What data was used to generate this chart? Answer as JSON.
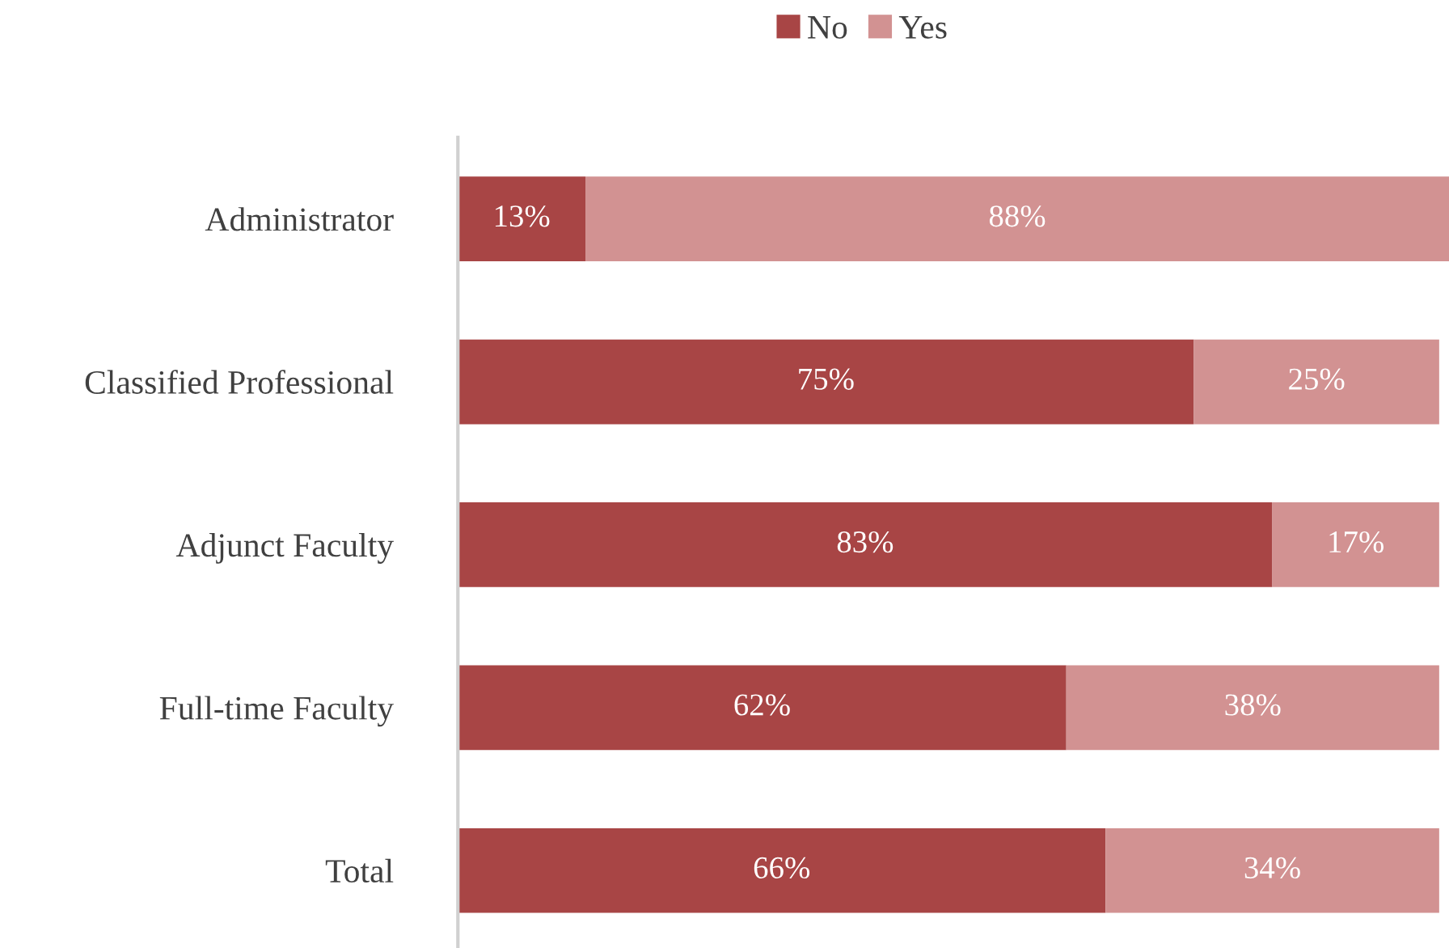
{
  "chart_data": {
    "type": "bar",
    "orientation": "horizontal",
    "stacked": true,
    "categories": [
      "Administrator",
      "Classified Professional",
      "Adjunct Faculty",
      "Full-time Faculty",
      "Total"
    ],
    "series": [
      {
        "name": "No",
        "color": "#a84545",
        "values": [
          13,
          75,
          83,
          62,
          66
        ],
        "value_labels": [
          "13%",
          "75%",
          "83%",
          "62%",
          "66%"
        ]
      },
      {
        "name": "Yes",
        "color": "#d29292",
        "values": [
          88,
          25,
          17,
          38,
          34
        ],
        "value_labels": [
          "88%",
          "25%",
          "17%",
          "38%",
          "34%"
        ]
      }
    ],
    "xlim": [
      0,
      101
    ],
    "tick_labels": "y",
    "legend": "top",
    "grid": false
  }
}
